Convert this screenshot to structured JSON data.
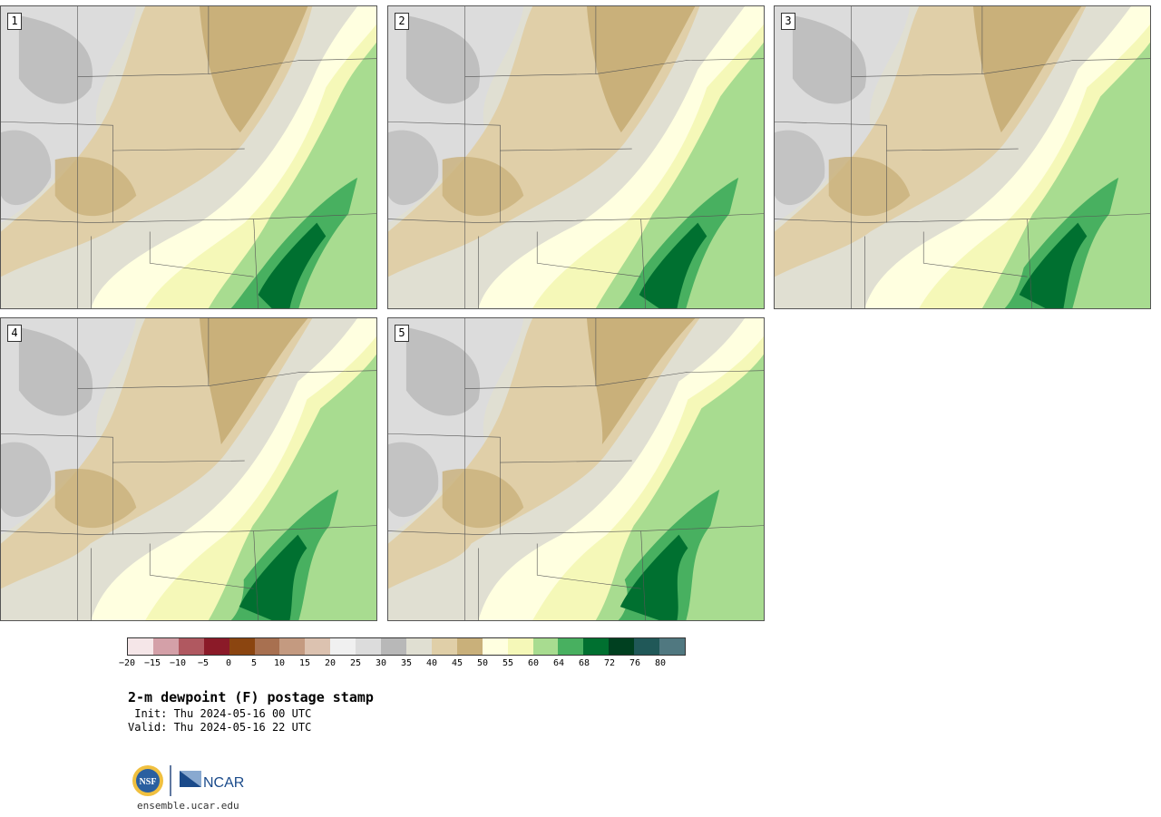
{
  "panels": [
    {
      "label": "1"
    },
    {
      "label": "2"
    },
    {
      "label": "3"
    },
    {
      "label": "4"
    },
    {
      "label": "5"
    }
  ],
  "colorbar": {
    "colors": [
      "#f5e6e8",
      "#d4a0a8",
      "#b05860",
      "#8b1a28",
      "#8b4510",
      "#a87050",
      "#c49a80",
      "#dcc2b0",
      "#f0f0f0",
      "#dcdcdc",
      "#b8b8b8",
      "#e0dfd2",
      "#e0cfa8",
      "#c9b07a",
      "#ffffe0",
      "#f5f8b8",
      "#a8dc90",
      "#48b060",
      "#007030",
      "#004020",
      "#205858",
      "#507880"
    ],
    "tick_labels": [
      "−20",
      "−15",
      "−10",
      "−5",
      "0",
      "5",
      "10",
      "15",
      "20",
      "25",
      "30",
      "35",
      "40",
      "45",
      "50",
      "55",
      "60",
      "64",
      "68",
      "72",
      "76",
      "80"
    ]
  },
  "legend": {
    "title": "2-m dewpoint (F) postage stamp",
    "init": " Init: Thu 2024-05-16 00 UTC",
    "valid": "Valid: Thu 2024-05-16 22 UTC"
  },
  "logos": {
    "nsf": "NSF",
    "ncar": "NCAR",
    "site": "ensemble.ucar.edu"
  }
}
